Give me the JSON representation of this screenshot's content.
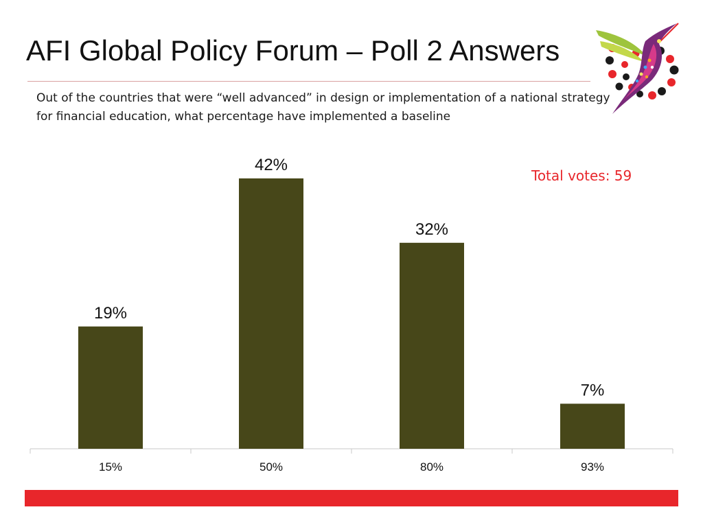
{
  "slide": {
    "title": "AFI Global Policy Forum – Poll 2 Answers",
    "question": "Out of the countries that were “well advanced” in design or implementation of a national strategy for financial education, what percentage have implemented a baseline",
    "total_votes_label": "Total votes: 59",
    "total_votes_color": "#e8262b",
    "bottom_bar_color": "#e8262b",
    "logo_icon": "hummingbird-icon"
  },
  "chart_data": {
    "type": "bar",
    "title": "",
    "xlabel": "",
    "ylabel": "",
    "categories": [
      "15%",
      "50%",
      "80%",
      "93%"
    ],
    "values": [
      19,
      42,
      32,
      7
    ],
    "data_labels": [
      "19%",
      "42%",
      "32%",
      "7%"
    ],
    "ylim": [
      0,
      42
    ],
    "grid": false,
    "legend": "none",
    "bar_color": "#474719"
  }
}
